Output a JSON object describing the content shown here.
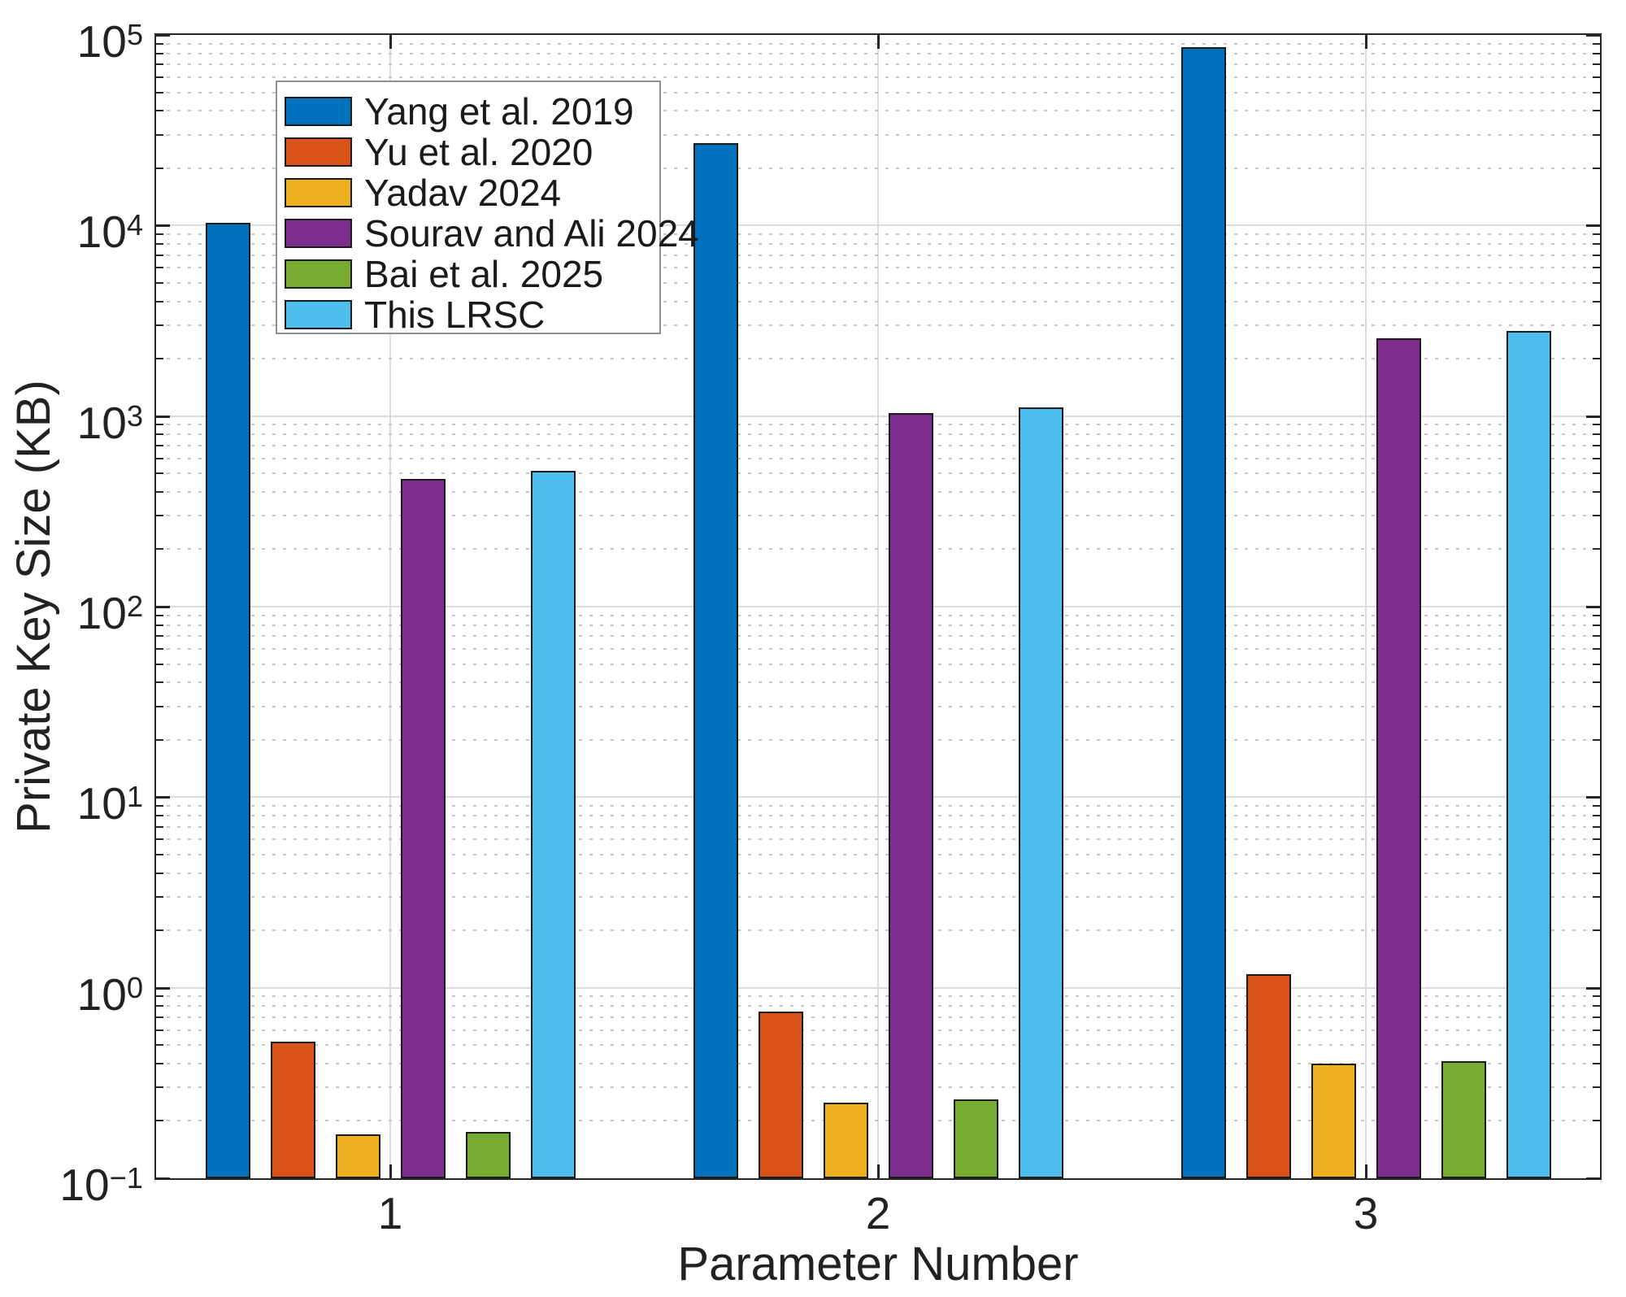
{
  "chart_data": {
    "type": "bar",
    "title": "",
    "xlabel": "Parameter Number",
    "ylabel": "Private Key Size (KB)",
    "categories": [
      "1",
      "2",
      "3"
    ],
    "series": [
      {
        "name": "Yang et al. 2019",
        "color": "#0072BD",
        "values": [
          10300,
          27000,
          86000
        ]
      },
      {
        "name": "Yu et al. 2020",
        "color": "#D95319",
        "values": [
          0.52,
          0.75,
          1.18
        ]
      },
      {
        "name": "Yadav 2024",
        "color": "#EDB120",
        "values": [
          0.17,
          0.25,
          0.4
        ]
      },
      {
        "name": "Sourav and Ali 2024",
        "color": "#7E2F8E",
        "values": [
          470,
          1040,
          2550
        ]
      },
      {
        "name": "Bai et al. 2025",
        "color": "#77AC30",
        "values": [
          0.175,
          0.26,
          0.41
        ]
      },
      {
        "name": "This LRSC",
        "color": "#4DBEEE",
        "values": [
          515,
          1110,
          2800
        ]
      }
    ],
    "yscale": "log",
    "ylim": [
      0.1,
      100000
    ],
    "y_tick_base": "10",
    "y_tick_exponents": [
      5,
      4,
      3,
      2,
      1,
      0,
      -1
    ],
    "grid": {
      "major": true,
      "minor": true
    },
    "legend_position": "top-left-inside",
    "bar_edge_color": "#1a1a1a"
  }
}
